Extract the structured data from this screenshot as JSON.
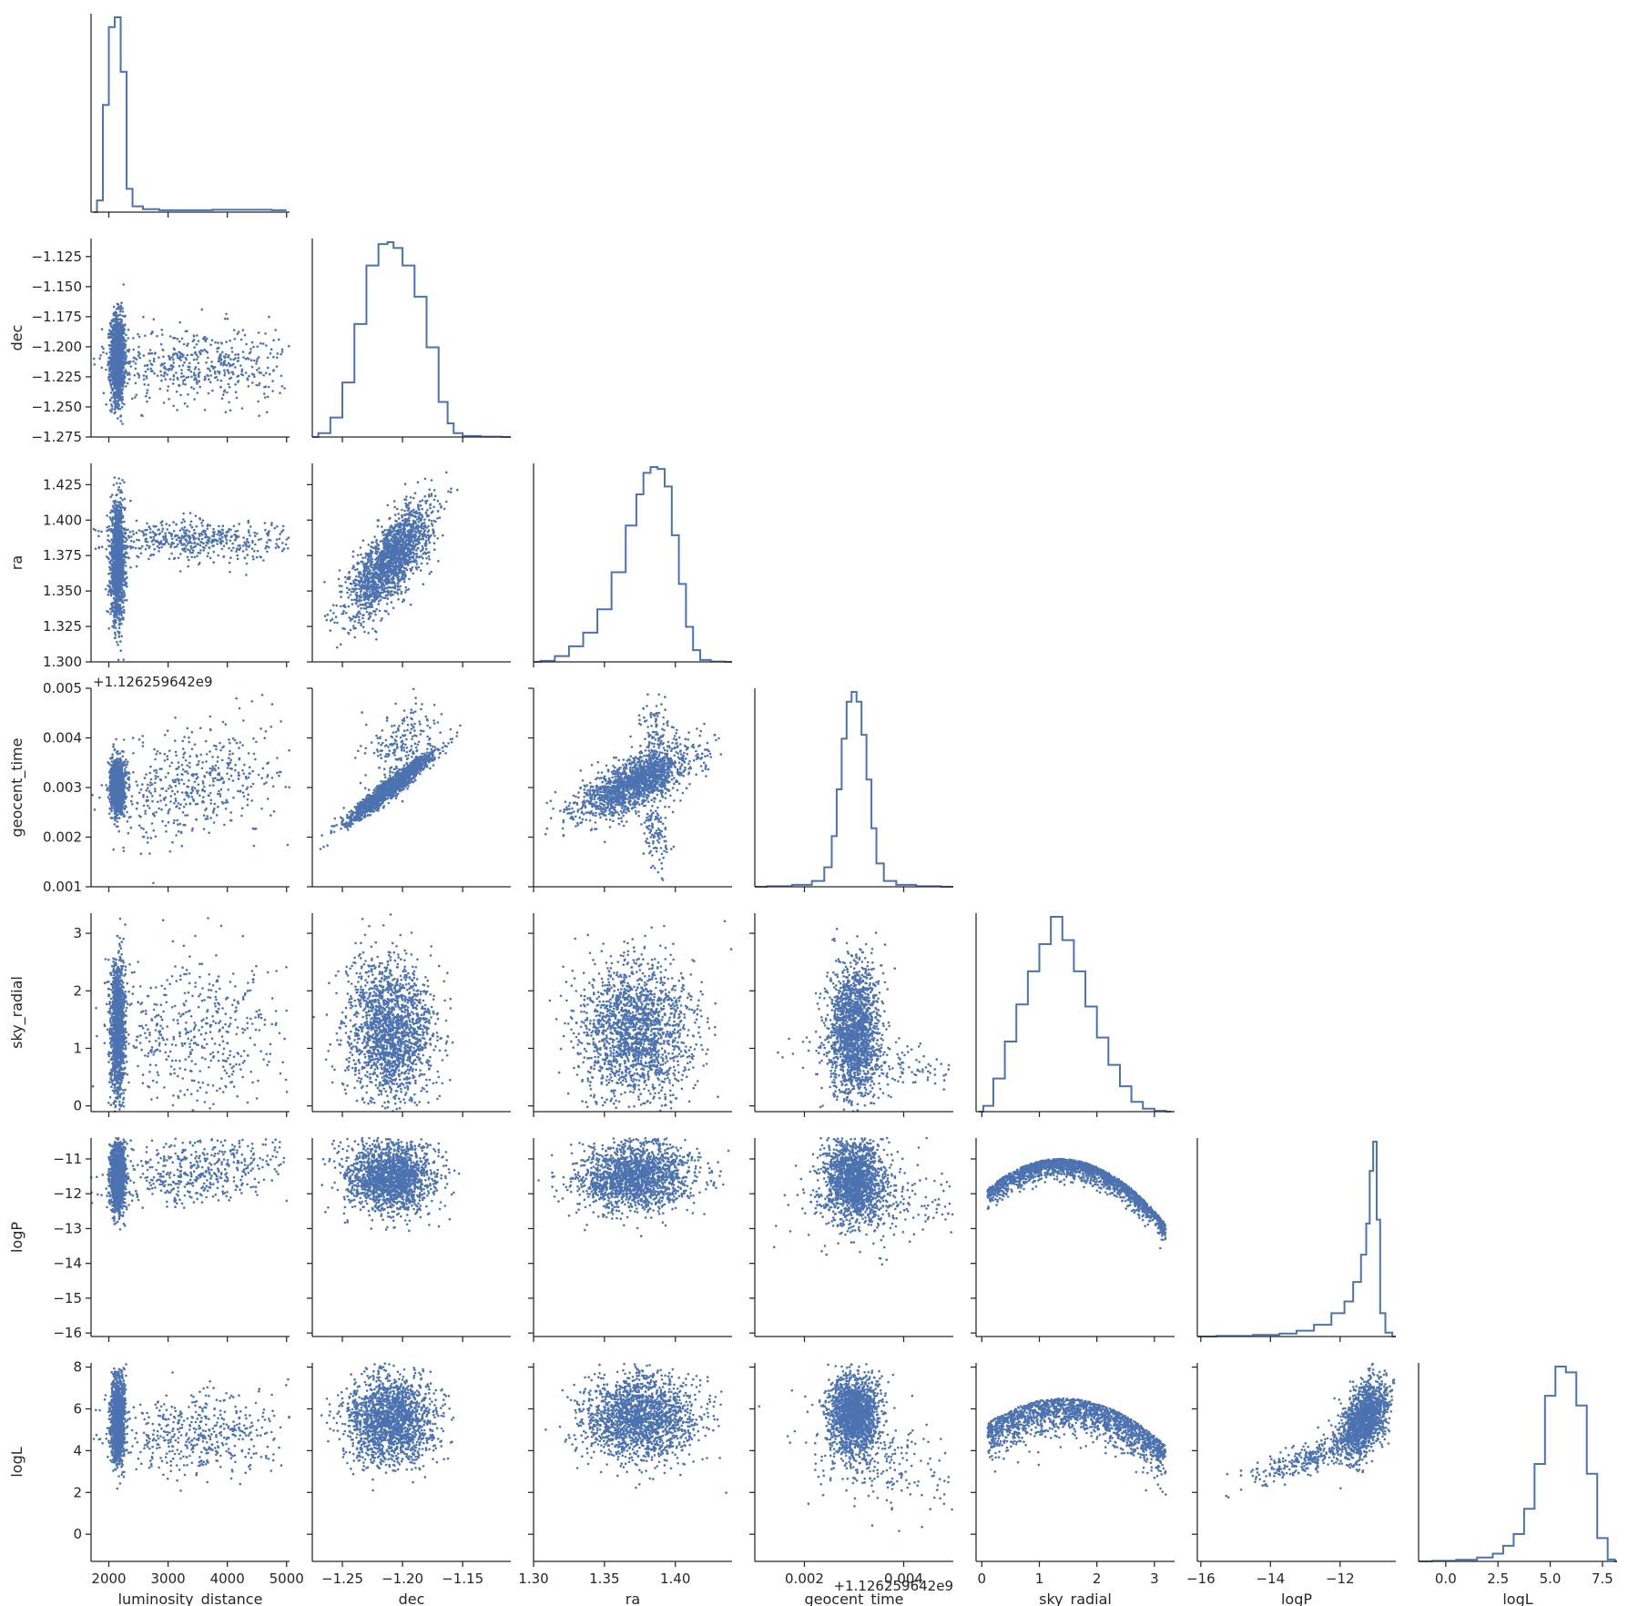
{
  "chart_data": {
    "type": "scatter",
    "kind": "corner-plot",
    "marker_color": "#4c72b0",
    "variables": [
      {
        "key": "luminosity_distance",
        "label": "luminosity_distance",
        "range": [
          1700,
          5050
        ],
        "ticks": [
          2000,
          3000,
          4000,
          5000
        ],
        "tick_labels": [
          "2000",
          "3000",
          "4000",
          "5000"
        ]
      },
      {
        "key": "dec",
        "label": "dec",
        "range": [
          -1.275,
          -1.11
        ],
        "ticks": [
          -1.25,
          -1.2,
          -1.15
        ],
        "tick_labels": [
          "−1.25",
          "−1.20",
          "−1.15"
        ],
        "y_ticks": [
          -1.125,
          -1.15,
          -1.175,
          -1.2,
          -1.225,
          -1.25,
          -1.275
        ],
        "y_tick_labels": [
          "−1.125",
          "−1.150",
          "−1.175",
          "−1.200",
          "−1.225",
          "−1.250",
          "−1.275"
        ]
      },
      {
        "key": "ra",
        "label": "ra",
        "range": [
          1.3,
          1.44
        ],
        "ticks": [
          1.3,
          1.35,
          1.4
        ],
        "tick_labels": [
          "1.30",
          "1.35",
          "1.40"
        ],
        "y_ticks": [
          1.3,
          1.325,
          1.35,
          1.375,
          1.4,
          1.425
        ],
        "y_tick_labels": [
          "1.300",
          "1.325",
          "1.350",
          "1.375",
          "1.400",
          "1.425"
        ]
      },
      {
        "key": "geocent_time",
        "label": "geocent_time",
        "range": [
          0.001,
          0.005
        ],
        "ticks": [
          0.002,
          0.004
        ],
        "tick_labels": [
          "0.002",
          "0.004"
        ],
        "y_ticks": [
          0.001,
          0.002,
          0.003,
          0.004,
          0.005
        ],
        "y_tick_labels": [
          "0.001",
          "0.002",
          "0.003",
          "0.004",
          "0.005"
        ],
        "offset_text": "+1.126259642e9"
      },
      {
        "key": "sky_radial",
        "label": "sky_radial",
        "range": [
          -0.1,
          3.35
        ],
        "ticks": [
          0,
          1,
          2,
          3
        ],
        "tick_labels": [
          "0",
          "1",
          "2",
          "3"
        ],
        "y_ticks": [
          0,
          1,
          2,
          3
        ],
        "y_tick_labels": [
          "0",
          "1",
          "2",
          "3"
        ]
      },
      {
        "key": "logP",
        "label": "logP",
        "range": [
          -16.1,
          -10.4
        ],
        "ticks": [
          -16,
          -14,
          -12
        ],
        "tick_labels": [
          "−16",
          "−14",
          "−12"
        ],
        "y_ticks": [
          -11,
          -12,
          -13,
          -14,
          -15,
          -16
        ],
        "y_tick_labels": [
          "−11",
          "−12",
          "−13",
          "−14",
          "−15",
          "−16"
        ]
      },
      {
        "key": "logL",
        "label": "logL",
        "range": [
          -1.3,
          8.2
        ],
        "ticks": [
          0,
          2.5,
          5,
          7.5
        ],
        "tick_labels": [
          "0.0",
          "2.5",
          "5.0",
          "7.5"
        ],
        "y_ticks": [
          0,
          2,
          4,
          6,
          8
        ],
        "y_tick_labels": [
          "0",
          "2",
          "4",
          "6",
          "8"
        ]
      }
    ],
    "histograms": {
      "luminosity_distance": {
        "x": [
          1750,
          1850,
          1950,
          2050,
          2150,
          2250,
          2350,
          2450,
          2700,
          3000,
          3500,
          4000,
          4500,
          5000
        ],
        "y": [
          0,
          0.06,
          0.55,
          0.95,
          1.0,
          0.72,
          0.12,
          0.03,
          0.015,
          0.01,
          0.01,
          0.012,
          0.012,
          0.01
        ]
      },
      "dec": {
        "x": [
          -1.275,
          -1.265,
          -1.255,
          -1.245,
          -1.235,
          -1.225,
          -1.215,
          -1.21,
          -1.205,
          -1.195,
          -1.185,
          -1.175,
          -1.165,
          -1.16,
          -1.155,
          -1.145,
          -1.125,
          -1.11
        ],
        "y": [
          0,
          0.02,
          0.1,
          0.28,
          0.58,
          0.88,
          0.99,
          1.0,
          0.97,
          0.88,
          0.72,
          0.46,
          0.18,
          0.07,
          0.02,
          0.005,
          0.002,
          0
        ]
      },
      "ra": {
        "x": [
          1.3,
          1.31,
          1.32,
          1.33,
          1.34,
          1.35,
          1.36,
          1.37,
          1.375,
          1.38,
          1.385,
          1.39,
          1.395,
          1.4,
          1.405,
          1.41,
          1.415,
          1.42,
          1.43,
          1.44
        ],
        "y": [
          0,
          0.005,
          0.03,
          0.08,
          0.15,
          0.27,
          0.46,
          0.7,
          0.86,
          0.97,
          1.0,
          0.99,
          0.9,
          0.65,
          0.4,
          0.18,
          0.06,
          0.01,
          0.002,
          0
        ]
      },
      "geocent_time": {
        "x": [
          0.001,
          0.0015,
          0.002,
          0.0023,
          0.0025,
          0.0026,
          0.0027,
          0.0028,
          0.0029,
          0.003,
          0.0031,
          0.0032,
          0.0033,
          0.0034,
          0.0035,
          0.0037,
          0.004,
          0.0045,
          0.005
        ],
        "y": [
          0,
          0.003,
          0.01,
          0.03,
          0.1,
          0.26,
          0.5,
          0.76,
          0.95,
          1.0,
          0.95,
          0.78,
          0.55,
          0.3,
          0.12,
          0.03,
          0.01,
          0.003,
          0
        ]
      },
      "sky_radial": {
        "x": [
          -0.05,
          0.1,
          0.3,
          0.5,
          0.7,
          0.9,
          1.1,
          1.3,
          1.5,
          1.7,
          1.9,
          2.1,
          2.3,
          2.5,
          2.7,
          2.9,
          3.1,
          3.3
        ],
        "y": [
          0,
          0.03,
          0.17,
          0.36,
          0.55,
          0.72,
          0.86,
          1.0,
          0.88,
          0.72,
          0.54,
          0.38,
          0.24,
          0.13,
          0.05,
          0.015,
          0.004,
          0
        ]
      },
      "logP": {
        "x": [
          -16.1,
          -15,
          -14,
          -13.5,
          -13,
          -12.5,
          -12,
          -11.75,
          -11.5,
          -11.3,
          -11.2,
          -11.1,
          -11.0,
          -10.9,
          -10.8,
          -10.6,
          -10.4
        ],
        "y": [
          0,
          0.003,
          0.008,
          0.015,
          0.03,
          0.06,
          0.12,
          0.18,
          0.28,
          0.42,
          0.58,
          0.85,
          1.0,
          0.6,
          0.12,
          0.02,
          0
        ]
      },
      "logL": {
        "x": [
          -1.3,
          0,
          1,
          2,
          2.5,
          3,
          3.5,
          4,
          4.5,
          5,
          5.5,
          6,
          6.5,
          7,
          7.5,
          8,
          8.2
        ],
        "y": [
          0,
          0.003,
          0.008,
          0.02,
          0.04,
          0.08,
          0.14,
          0.27,
          0.5,
          0.85,
          1.0,
          0.97,
          0.8,
          0.45,
          0.12,
          0.01,
          0
        ]
      }
    },
    "pair_clusters": [
      {
        "x": "luminosity_distance",
        "y": "dec",
        "blobs": [
          {
            "mx": 2150,
            "my": -1.21,
            "sx": 60,
            "sy": 0.018,
            "n": 1400,
            "rho": 0
          },
          {
            "mx": 3500,
            "my": -1.215,
            "sx": 800,
            "sy": 0.016,
            "n": 500,
            "rho": 0
          }
        ]
      },
      {
        "x": "luminosity_distance",
        "y": "ra",
        "blobs": [
          {
            "mx": 2150,
            "my": 1.37,
            "sx": 60,
            "sy": 0.02,
            "n": 1400,
            "rho": 0
          },
          {
            "mx": 3500,
            "my": 1.386,
            "sx": 800,
            "sy": 0.007,
            "n": 500,
            "rho": 0
          }
        ]
      },
      {
        "x": "dec",
        "y": "ra",
        "blobs": [
          {
            "mx": -1.21,
            "my": 1.372,
            "sx": 0.017,
            "sy": 0.019,
            "n": 1800,
            "rho": 0.72
          }
        ]
      },
      {
        "x": "luminosity_distance",
        "y": "geocent_time",
        "blobs": [
          {
            "mx": 2150,
            "my": 0.00303,
            "sx": 60,
            "sy": 0.00025,
            "n": 1400,
            "rho": 0
          },
          {
            "mx": 3500,
            "my": 0.0031,
            "sx": 800,
            "sy": 0.0006,
            "n": 500,
            "rho": 0.4
          }
        ]
      },
      {
        "x": "dec",
        "y": "geocent_time",
        "blobs": [
          {
            "mx": -1.21,
            "my": 0.003,
            "sx": 0.018,
            "sy": 0.00035,
            "n": 1600,
            "rho": 0.96
          },
          {
            "mx": -1.2,
            "my": 0.0039,
            "sx": 0.014,
            "sy": 0.0004,
            "n": 200,
            "rho": 0.3
          }
        ]
      },
      {
        "x": "ra",
        "y": "geocent_time",
        "blobs": [
          {
            "mx": 1.372,
            "my": 0.0031,
            "sx": 0.02,
            "sy": 0.00035,
            "n": 1600,
            "rho": 0.7
          },
          {
            "mx": 1.386,
            "my": 0.004,
            "sx": 0.005,
            "sy": 0.0004,
            "n": 120,
            "rho": 0
          },
          {
            "mx": 1.386,
            "my": 0.0021,
            "sx": 0.005,
            "sy": 0.0004,
            "n": 120,
            "rho": 0
          }
        ]
      },
      {
        "x": "luminosity_distance",
        "y": "sky_radial",
        "blobs": [
          {
            "mx": 2150,
            "my": 1.3,
            "sx": 60,
            "sy": 0.6,
            "n": 1400,
            "rho": 0
          },
          {
            "mx": 3500,
            "my": 1.2,
            "sx": 800,
            "sy": 0.7,
            "n": 500,
            "rho": 0
          }
        ]
      },
      {
        "x": "dec",
        "y": "sky_radial",
        "blobs": [
          {
            "mx": -1.21,
            "my": 1.3,
            "sx": 0.018,
            "sy": 0.6,
            "n": 1800,
            "rho": 0
          }
        ]
      },
      {
        "x": "ra",
        "y": "sky_radial",
        "blobs": [
          {
            "mx": 1.372,
            "my": 1.3,
            "sx": 0.02,
            "sy": 0.6,
            "n": 1800,
            "rho": 0
          }
        ]
      },
      {
        "x": "geocent_time",
        "y": "sky_radial",
        "blobs": [
          {
            "mx": 0.003,
            "my": 1.3,
            "sx": 0.00025,
            "sy": 0.6,
            "n": 1700,
            "rho": 0
          },
          {
            "mx": 0.0035,
            "my": 0.7,
            "sx": 0.0008,
            "sy": 0.25,
            "n": 180,
            "rho": -0.5
          }
        ]
      },
      {
        "x": "luminosity_distance",
        "y": "logP",
        "blobs": [
          {
            "mx": 2150,
            "my": -11.5,
            "sx": 60,
            "sy": 0.5,
            "n": 1400,
            "rho": 0
          },
          {
            "mx": 3500,
            "my": -11.3,
            "sx": 800,
            "sy": 0.5,
            "n": 500,
            "rho": 0.3
          }
        ]
      },
      {
        "x": "dec",
        "y": "logP",
        "blobs": [
          {
            "mx": -1.21,
            "my": -11.5,
            "sx": 0.018,
            "sy": 0.5,
            "n": 1800,
            "rho": 0
          }
        ]
      },
      {
        "x": "ra",
        "y": "logP",
        "blobs": [
          {
            "mx": 1.372,
            "my": -11.5,
            "sx": 0.02,
            "sy": 0.5,
            "n": 1800,
            "rho": 0.1
          }
        ]
      },
      {
        "x": "geocent_time",
        "y": "logP",
        "blobs": [
          {
            "mx": 0.003,
            "my": -11.6,
            "sx": 0.0003,
            "sy": 0.6,
            "n": 1600,
            "rho": 0
          },
          {
            "mx": 0.0035,
            "my": -12.3,
            "sx": 0.0008,
            "sy": 0.6,
            "n": 250,
            "rho": 0
          }
        ]
      },
      {
        "x": "sky_radial",
        "y": "logP",
        "arc": {
          "x_min": 0.1,
          "x_max": 3.2,
          "peak_x": 1.35,
          "peak_y": -11.0,
          "curv": 0.55,
          "spread": 0.25,
          "n": 1800
        }
      },
      {
        "x": "luminosity_distance",
        "y": "logL",
        "blobs": [
          {
            "mx": 2150,
            "my": 5.5,
            "sx": 60,
            "sy": 1.0,
            "n": 1400,
            "rho": 0
          },
          {
            "mx": 3500,
            "my": 4.8,
            "sx": 800,
            "sy": 1.0,
            "n": 500,
            "rho": 0
          }
        ]
      },
      {
        "x": "dec",
        "y": "logL",
        "blobs": [
          {
            "mx": -1.21,
            "my": 5.5,
            "sx": 0.018,
            "sy": 1.0,
            "n": 1800,
            "rho": 0
          }
        ]
      },
      {
        "x": "ra",
        "y": "logL",
        "blobs": [
          {
            "mx": 1.375,
            "my": 5.6,
            "sx": 0.02,
            "sy": 1.0,
            "n": 1800,
            "rho": 0
          }
        ]
      },
      {
        "x": "geocent_time",
        "y": "logL",
        "blobs": [
          {
            "mx": 0.003,
            "my": 5.7,
            "sx": 0.00025,
            "sy": 0.9,
            "n": 1600,
            "rho": 0
          },
          {
            "mx": 0.0035,
            "my": 3.5,
            "sx": 0.0008,
            "sy": 1.2,
            "n": 250,
            "rho": -0.3
          }
        ]
      },
      {
        "x": "sky_radial",
        "y": "logL",
        "arc": {
          "x_min": 0.1,
          "x_max": 3.2,
          "peak_x": 1.4,
          "peak_y": 6.5,
          "curv": 0.7,
          "spread": 0.8,
          "n": 1800
        }
      },
      {
        "x": "logP",
        "y": "logL",
        "blobs": [
          {
            "mx": -11.3,
            "my": 5.5,
            "sx": 0.35,
            "sy": 0.9,
            "n": 1500,
            "rho": 0.45
          },
          {
            "mx": -13.0,
            "my": 3.6,
            "sx": 0.8,
            "sy": 0.6,
            "n": 300,
            "rho": 0.8
          }
        ]
      }
    ]
  }
}
